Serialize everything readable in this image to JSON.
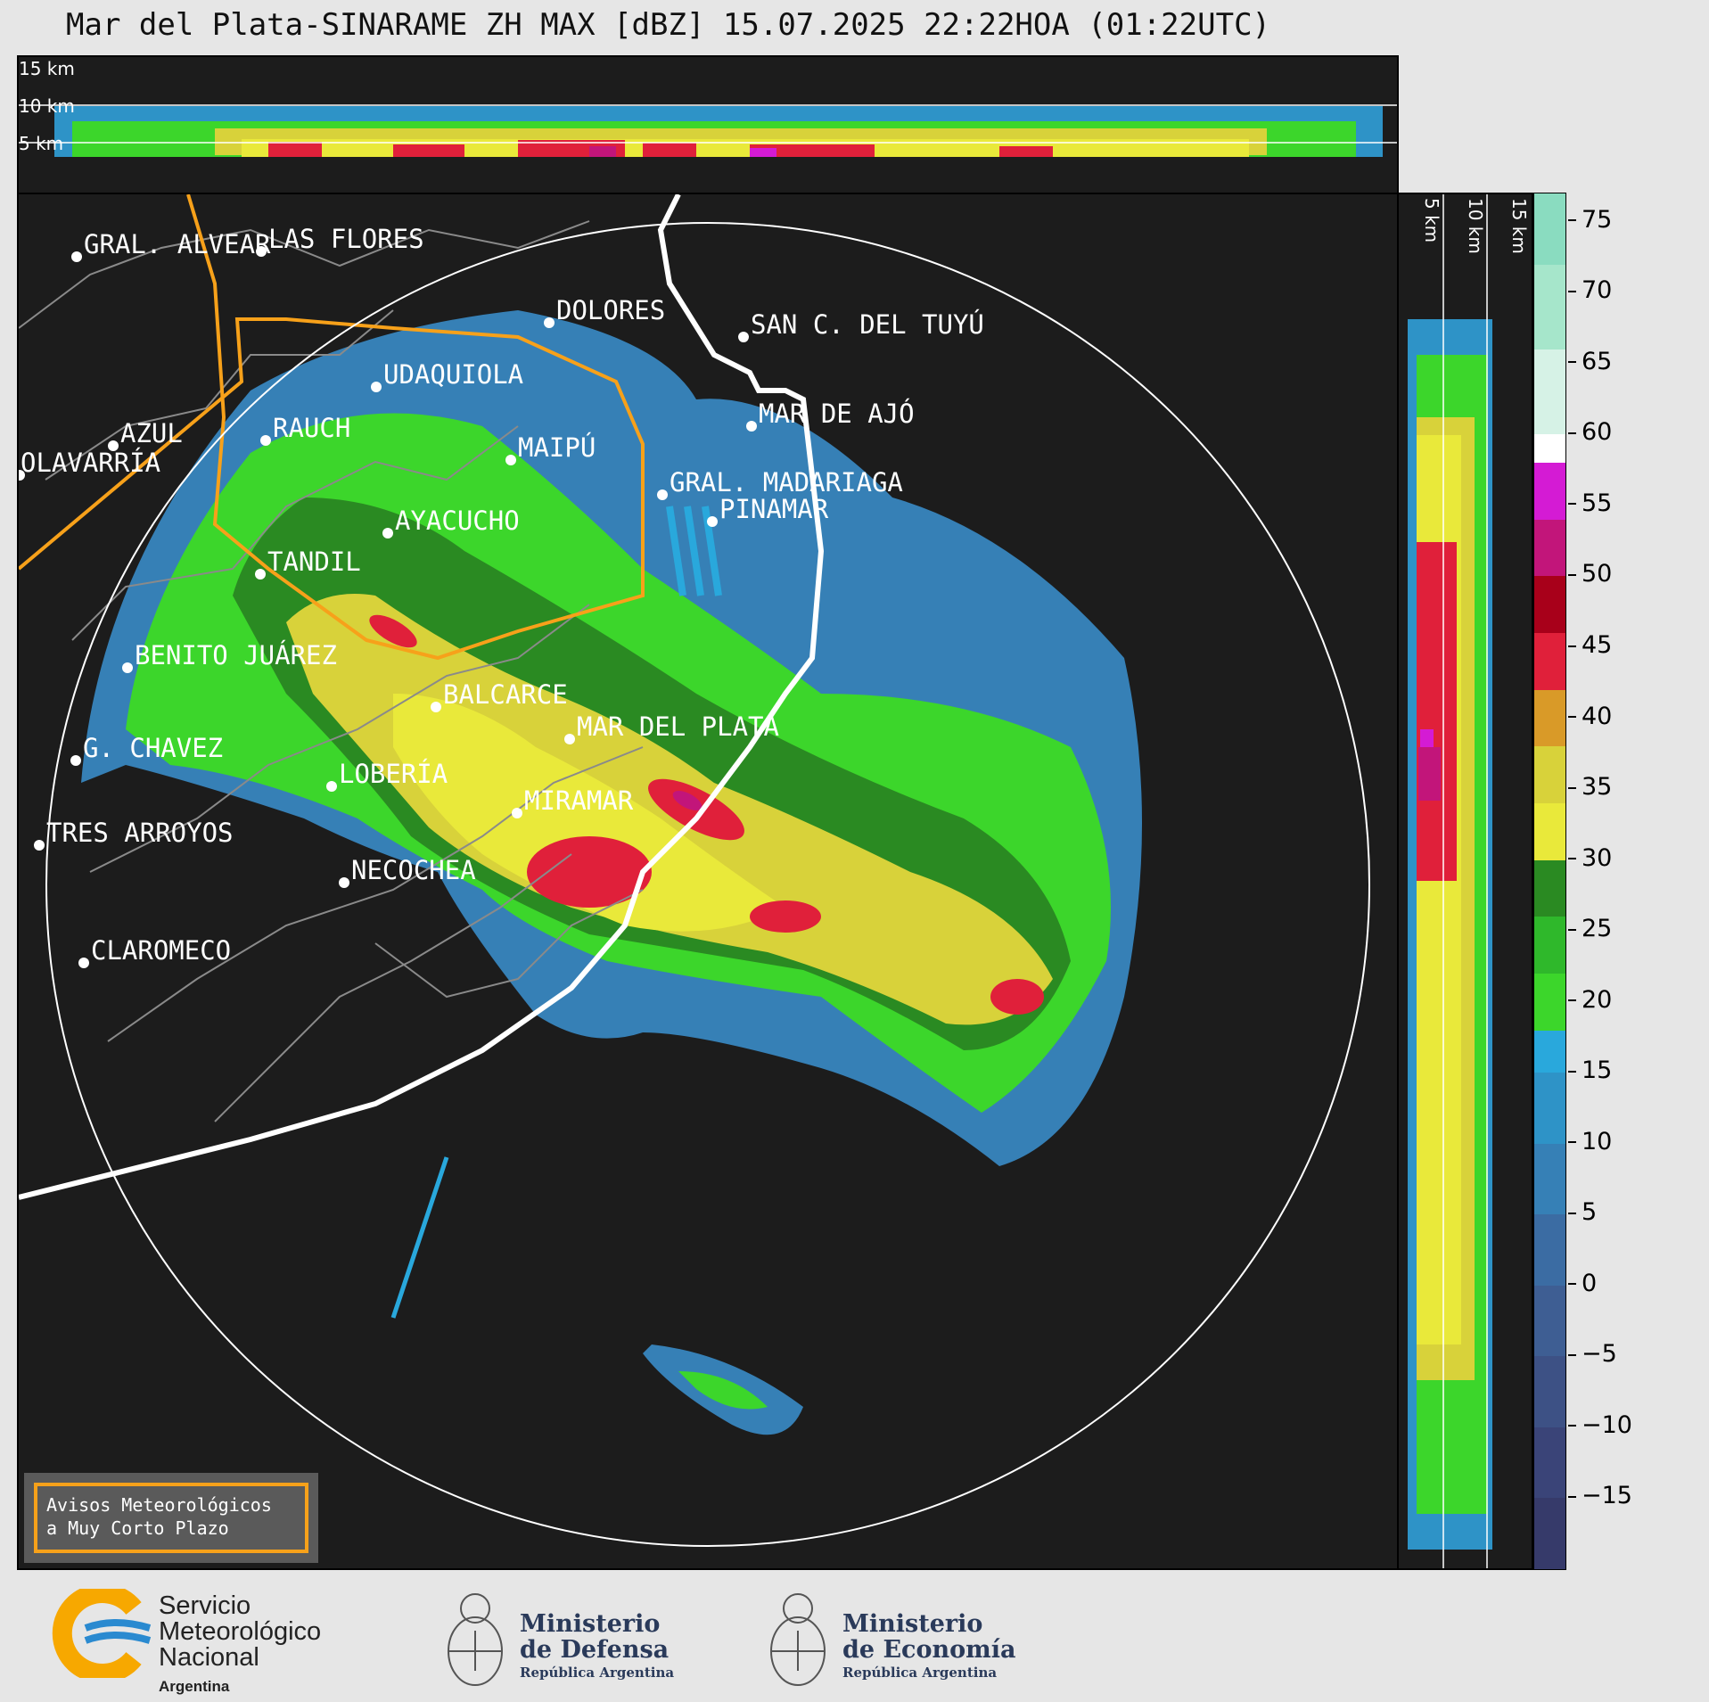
{
  "title": "Mar del Plata-SINARAME ZH MAX [dBZ] 15.07.2025 22:22HOA (01:22UTC)",
  "top_panel": {
    "height_labels": [
      "15 km",
      "10 km",
      "5 km"
    ]
  },
  "side_panel": {
    "height_labels": [
      "5 km",
      "10 km",
      "15 km"
    ]
  },
  "cities": [
    {
      "name": "GRAL. ALVEAR"
    },
    {
      "name": "LAS FLORES"
    },
    {
      "name": "DOLORES"
    },
    {
      "name": "SAN C. DEL TUYÚ"
    },
    {
      "name": "UDAQUIOLA"
    },
    {
      "name": "MAR DE AJÓ"
    },
    {
      "name": "AZUL"
    },
    {
      "name": "RAUCH"
    },
    {
      "name": "MAIPÚ"
    },
    {
      "name": "OLAVARRÍA"
    },
    {
      "name": "GRAL. MADARIAGA"
    },
    {
      "name": "PINAMAR"
    },
    {
      "name": "AYACUCHO"
    },
    {
      "name": "TANDIL"
    },
    {
      "name": "BENITO JUÁREZ"
    },
    {
      "name": "BALCARCE"
    },
    {
      "name": "MAR DEL PLATA"
    },
    {
      "name": "G. CHAVEZ"
    },
    {
      "name": "LOBERÍA"
    },
    {
      "name": "MIRAMAR"
    },
    {
      "name": "TRES ARROYOS"
    },
    {
      "name": "NECOCHEA"
    },
    {
      "name": "CLAROMECO"
    }
  ],
  "colorbar": {
    "unit": "dBZ",
    "tick_labels": [
      "75",
      "70",
      "65",
      "60",
      "55",
      "50",
      "45",
      "40",
      "35",
      "30",
      "25",
      "20",
      "15",
      "10",
      "5",
      "0",
      "−5",
      "−10",
      "−15"
    ],
    "range": [
      -20,
      77
    ],
    "colors": [
      {
        "from": -20,
        "to": -15,
        "color": "#363a6a"
      },
      {
        "from": -15,
        "to": -10,
        "color": "#3a4478"
      },
      {
        "from": -10,
        "to": -5,
        "color": "#3d5185"
      },
      {
        "from": -5,
        "to": 0,
        "color": "#3e5e93"
      },
      {
        "from": 0,
        "to": 5,
        "color": "#3b6ca3"
      },
      {
        "from": 5,
        "to": 10,
        "color": "#3680b6"
      },
      {
        "from": 10,
        "to": 15,
        "color": "#2e93c7"
      },
      {
        "from": 15,
        "to": 18,
        "color": "#29a8dc"
      },
      {
        "from": 18,
        "to": 22,
        "color": "#3cd62b"
      },
      {
        "from": 22,
        "to": 26,
        "color": "#2fb82b"
      },
      {
        "from": 26,
        "to": 30,
        "color": "#2a8a22"
      },
      {
        "from": 30,
        "to": 34,
        "color": "#e9e93a"
      },
      {
        "from": 34,
        "to": 38,
        "color": "#d8d23a"
      },
      {
        "from": 38,
        "to": 42,
        "color": "#d99a28"
      },
      {
        "from": 42,
        "to": 46,
        "color": "#e0203a"
      },
      {
        "from": 46,
        "to": 50,
        "color": "#a8001a"
      },
      {
        "from": 50,
        "to": 54,
        "color": "#c2157a"
      },
      {
        "from": 54,
        "to": 58,
        "color": "#d41bd4"
      },
      {
        "from": 58,
        "to": 60,
        "color": "#ffffff"
      },
      {
        "from": 60,
        "to": 66,
        "color": "#d6f2e6"
      },
      {
        "from": 66,
        "to": 72,
        "color": "#a6e6cb"
      },
      {
        "from": 72,
        "to": 77,
        "color": "#8adcc0"
      }
    ]
  },
  "notice": {
    "line1": "Avisos Meteorológicos",
    "line2": "a Muy Corto Plazo"
  },
  "footer": {
    "smn": {
      "line1": "Servicio",
      "line2": "Meteorológico",
      "line3": "Nacional",
      "country": "Argentina"
    },
    "defensa": {
      "line1": "Ministerio",
      "line2": "de Defensa",
      "rep": "República Argentina"
    },
    "economia": {
      "line1": "Ministerio",
      "line2": "de Economía",
      "rep": "República Argentina"
    }
  },
  "colors": {
    "background": "#1c1c1c",
    "range_ring": "#ffffff",
    "coast": "#ffffff",
    "region_outline": "#f7a11a",
    "district_outline": "#8a8a8a",
    "smn_blue": "#2a8ad0",
    "smn_yellow": "#f7a800"
  }
}
